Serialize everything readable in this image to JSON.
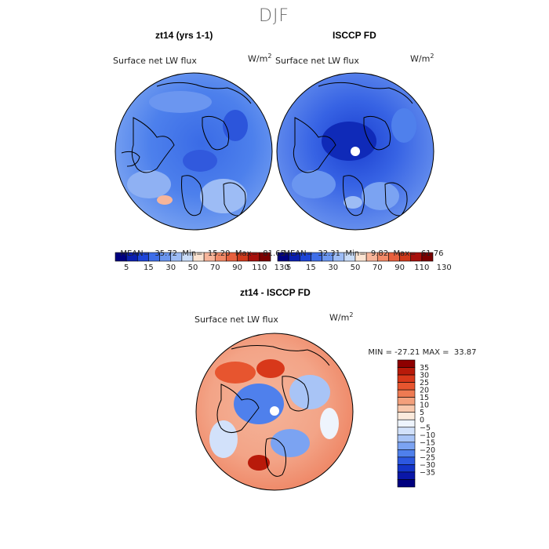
{
  "season": "DJF",
  "panels": [
    {
      "title": "zt14 (yrs 1-1)",
      "field": "Surface net LW flux",
      "units": "W/m2",
      "stats": {
        "mean_label": "MEAN=",
        "mean": "35.72",
        "min_label": "Min=",
        "min": "15.20",
        "max_label": "Max=",
        "max": "81.65"
      }
    },
    {
      "title": "ISCCP FD",
      "field": "Surface net LW flux",
      "units": "W/m2",
      "stats": {
        "mean_label": "MEAN=",
        "mean": "32.31",
        "min_label": "Min=",
        "min": "9.82",
        "max_label": "Max=",
        "max": "61.76"
      }
    },
    {
      "title": "zt14 - ISCCP FD",
      "field": "Surface net LW flux",
      "units": "W/m2",
      "stats": {
        "min_label": "MIN =",
        "min": "-27.21",
        "max_label": "MAX =",
        "max": "33.87"
      }
    }
  ],
  "colorbar_top": {
    "colors": [
      "#00007f",
      "#0b1fb0",
      "#1e45d8",
      "#3f6ee8",
      "#6b96f0",
      "#9dbcf5",
      "#c9dcf8",
      "#fbe4d2",
      "#f7b59a",
      "#f28a68",
      "#e6603e",
      "#d03a1c",
      "#a8100c",
      "#7a0000"
    ],
    "labels": [
      "5",
      "15",
      "30",
      "50",
      "70",
      "90",
      "110",
      "130"
    ]
  },
  "colorbar_diff": {
    "colors": [
      "#00007f",
      "#0a17a8",
      "#1435c8",
      "#2c58e0",
      "#4f80ec",
      "#7ba3f2",
      "#a8c4f6",
      "#d2e1fa",
      "#eef4fd",
      "#fbeadc",
      "#f8c8ac",
      "#f3a07c",
      "#ee7a52",
      "#e7552f",
      "#d8381a",
      "#b81a0a",
      "#8e0000"
    ],
    "labels": [
      "35",
      "30",
      "25",
      "20",
      "15",
      "10",
      "5",
      "0",
      "−5",
      "−10",
      "−15",
      "−20",
      "−25",
      "−30",
      "−35"
    ]
  }
}
